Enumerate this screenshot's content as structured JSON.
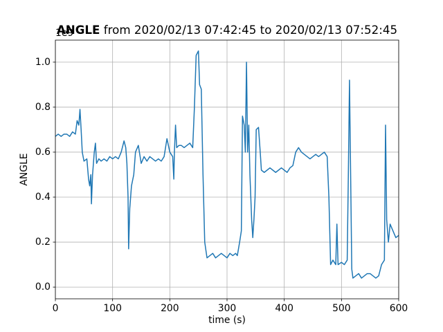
{
  "chart_data": {
    "type": "line",
    "title_bold": "ANGLE",
    "title_rest": " from 2020/02/13 07:42:45 to 2020/02/13 07:52:45",
    "xlabel": "time (s)",
    "ylabel": "ANGLE",
    "offset_label": "1e9",
    "xlim": [
      0,
      600
    ],
    "ylim": [
      -0.052,
      1.098
    ],
    "xticks": [
      0,
      100,
      200,
      300,
      400,
      500,
      600
    ],
    "yticks": [
      {
        "value": 0,
        "label": "0.0"
      },
      0.2,
      0.4,
      0.6,
      0.8,
      {
        "value": 1,
        "label": "1.0"
      }
    ],
    "grid": true,
    "series": [
      {
        "name": "ANGLE",
        "color": "#1f77b4",
        "x": [
          0,
          5,
          10,
          15,
          20,
          25,
          30,
          35,
          38,
          41,
          43,
          45,
          47,
          50,
          55,
          58,
          60,
          62,
          63,
          65,
          68,
          70,
          72,
          76,
          80,
          85,
          90,
          95,
          100,
          105,
          110,
          115,
          120,
          123,
          125,
          127,
          128,
          130,
          133,
          137,
          140,
          145,
          150,
          155,
          160,
          165,
          170,
          175,
          180,
          185,
          190,
          195,
          200,
          205,
          207,
          208,
          210,
          212,
          216,
          220,
          225,
          230,
          235,
          240,
          243,
          246,
          250,
          252,
          255,
          258,
          261,
          265,
          270,
          275,
          280,
          285,
          290,
          295,
          300,
          305,
          310,
          315,
          318,
          322,
          325,
          327,
          330,
          332,
          334,
          336,
          338,
          340,
          343,
          345,
          347,
          349,
          351,
          355,
          358,
          360,
          365,
          370,
          375,
          380,
          385,
          390,
          395,
          400,
          405,
          410,
          415,
          420,
          425,
          430,
          435,
          440,
          445,
          450,
          455,
          460,
          465,
          470,
          475,
          478,
          481,
          485,
          490,
          492,
          494,
          500,
          505,
          510,
          512,
          514,
          516,
          518,
          520,
          525,
          530,
          535,
          540,
          545,
          550,
          555,
          560,
          565,
          570,
          575,
          577,
          579,
          582,
          585,
          590,
          595,
          600
        ],
        "values": [
          0.67,
          0.68,
          0.67,
          0.68,
          0.68,
          0.67,
          0.69,
          0.68,
          0.74,
          0.72,
          0.79,
          0.7,
          0.6,
          0.56,
          0.57,
          0.48,
          0.45,
          0.5,
          0.37,
          0.5,
          0.6,
          0.64,
          0.55,
          0.57,
          0.56,
          0.57,
          0.56,
          0.58,
          0.57,
          0.58,
          0.57,
          0.6,
          0.65,
          0.62,
          0.55,
          0.4,
          0.17,
          0.35,
          0.45,
          0.5,
          0.6,
          0.63,
          0.55,
          0.58,
          0.56,
          0.58,
          0.57,
          0.56,
          0.57,
          0.56,
          0.58,
          0.66,
          0.6,
          0.58,
          0.48,
          0.6,
          0.72,
          0.62,
          0.63,
          0.63,
          0.62,
          0.63,
          0.64,
          0.62,
          0.8,
          1.03,
          1.05,
          0.9,
          0.88,
          0.5,
          0.2,
          0.13,
          0.14,
          0.15,
          0.13,
          0.14,
          0.15,
          0.14,
          0.13,
          0.15,
          0.14,
          0.15,
          0.14,
          0.2,
          0.25,
          0.76,
          0.72,
          0.6,
          1.0,
          0.6,
          0.72,
          0.5,
          0.3,
          0.22,
          0.3,
          0.4,
          0.7,
          0.71,
          0.6,
          0.52,
          0.51,
          0.52,
          0.53,
          0.52,
          0.51,
          0.52,
          0.53,
          0.52,
          0.51,
          0.53,
          0.54,
          0.6,
          0.62,
          0.6,
          0.59,
          0.58,
          0.57,
          0.58,
          0.59,
          0.58,
          0.59,
          0.6,
          0.58,
          0.4,
          0.1,
          0.12,
          0.1,
          0.28,
          0.1,
          0.11,
          0.1,
          0.12,
          0.5,
          0.92,
          0.5,
          0.08,
          0.04,
          0.05,
          0.06,
          0.04,
          0.05,
          0.06,
          0.06,
          0.05,
          0.04,
          0.05,
          0.1,
          0.12,
          0.72,
          0.3,
          0.2,
          0.28,
          0.25,
          0.22,
          0.23
        ]
      }
    ]
  }
}
